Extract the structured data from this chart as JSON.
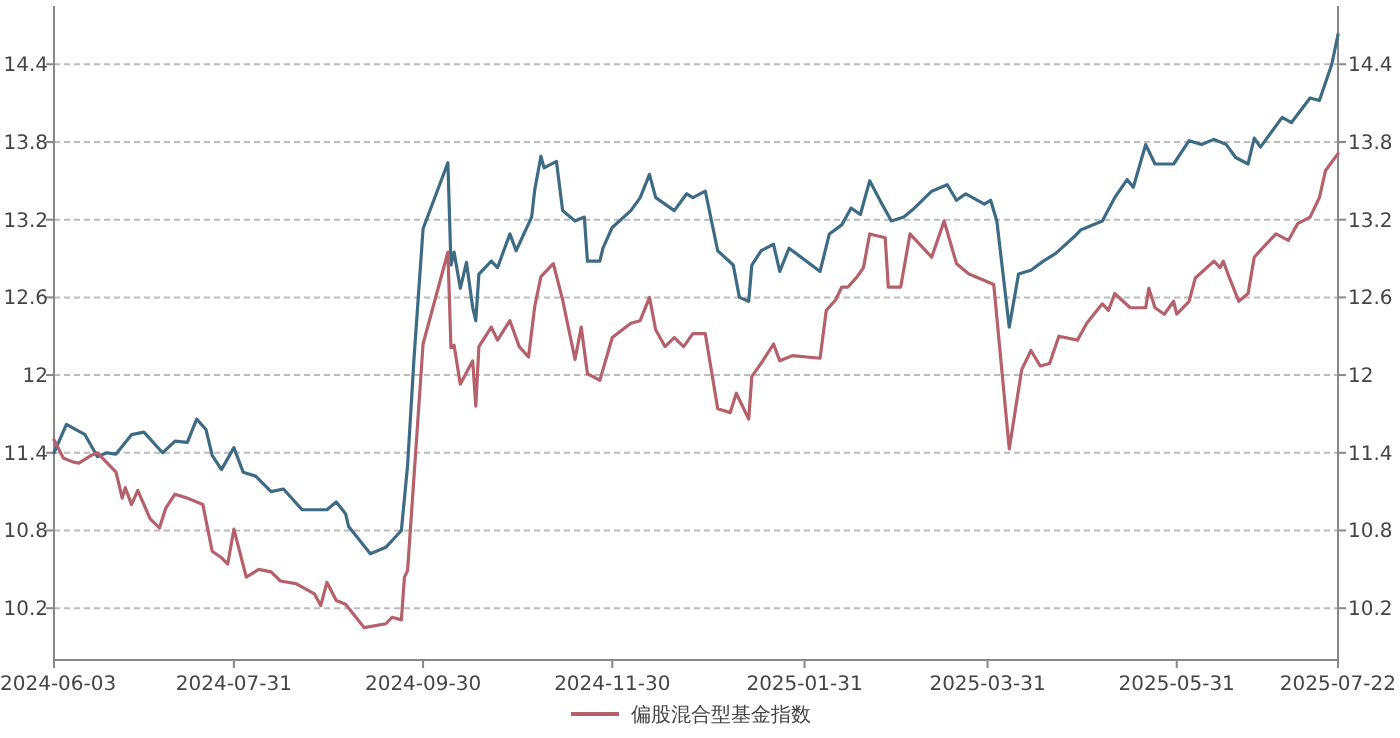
{
  "chart_data": {
    "type": "line",
    "x": [
      "2024-06-03",
      "2024-06-07",
      "2024-06-13",
      "2024-06-17",
      "2024-06-20",
      "2024-06-23",
      "2024-06-28",
      "2024-07-02",
      "2024-07-08",
      "2024-07-12",
      "2024-07-16",
      "2024-07-19",
      "2024-07-22",
      "2024-07-24",
      "2024-07-27",
      "2024-07-31",
      "2024-08-03",
      "2024-08-07",
      "2024-08-12",
      "2024-08-16",
      "2024-08-22",
      "2024-08-30",
      "2024-09-02",
      "2024-09-05",
      "2024-09-06",
      "2024-09-13",
      "2024-09-18",
      "2024-09-23",
      "2024-09-25",
      "2024-09-27",
      "2024-09-30",
      "2024-10-08",
      "2024-10-09",
      "2024-10-10",
      "2024-10-12",
      "2024-10-14",
      "2024-10-16",
      "2024-10-17",
      "2024-10-18",
      "2024-10-22",
      "2024-10-24",
      "2024-10-28",
      "2024-10-30",
      "2024-11-04",
      "2024-11-05",
      "2024-11-07",
      "2024-11-08",
      "2024-11-12",
      "2024-11-14",
      "2024-11-18",
      "2024-11-21",
      "2024-11-22",
      "2024-11-26",
      "2024-11-27",
      "2024-11-30",
      "2024-12-06",
      "2024-12-09",
      "2024-12-12",
      "2024-12-14",
      "2024-12-20",
      "2024-12-24",
      "2024-12-26",
      "2024-12-30",
      "2025-01-03",
      "2025-01-08",
      "2025-01-10",
      "2025-01-13",
      "2025-01-14",
      "2025-01-17",
      "2025-01-21",
      "2025-01-23",
      "2025-01-26",
      "2025-02-05",
      "2025-02-08",
      "2025-02-12",
      "2025-02-15",
      "2025-02-18",
      "2025-02-21",
      "2025-02-25",
      "2025-02-28",
      "2025-03-04",
      "2025-03-07",
      "2025-03-13",
      "2025-03-18",
      "2025-03-21",
      "2025-03-24",
      "2025-03-30",
      "2025-04-01",
      "2025-04-03",
      "2025-04-07",
      "2025-04-10",
      "2025-04-14",
      "2025-04-18",
      "2025-04-22",
      "2025-04-28",
      "2025-04-30",
      "2025-05-07",
      "2025-05-11",
      "2025-05-15",
      "2025-05-17",
      "2025-05-21",
      "2025-05-24",
      "2025-05-30",
      "2025-06-04",
      "2025-06-08",
      "2025-06-12",
      "2025-06-16",
      "2025-06-19",
      "2025-06-23",
      "2025-06-25",
      "2025-06-27",
      "2025-07-04",
      "2025-07-07",
      "2025-07-13",
      "2025-07-16",
      "2025-07-20",
      "2025-07-22"
    ],
    "series": [
      {
        "color": "#3e6b84",
        "values": [
          11.4,
          11.62,
          11.54,
          11.37,
          11.4,
          11.39,
          11.54,
          11.56,
          11.4,
          11.49,
          11.48,
          11.66,
          11.58,
          11.38,
          11.27,
          11.44,
          11.25,
          11.22,
          11.1,
          11.12,
          10.96,
          10.96,
          11.02,
          10.93,
          10.83,
          10.62,
          10.67,
          10.8,
          11.3,
          12.1,
          13.13,
          13.64,
          12.85,
          12.95,
          12.67,
          12.87,
          12.52,
          12.42,
          12.78,
          12.88,
          12.83,
          13.09,
          12.96,
          13.22,
          13.43,
          13.69,
          13.6,
          13.65,
          13.27,
          13.19,
          13.22,
          12.88,
          12.88,
          12.98,
          13.14,
          13.27,
          13.37,
          13.55,
          13.37,
          13.27,
          13.4,
          13.37,
          13.42,
          12.96,
          12.85,
          12.6,
          12.57,
          12.85,
          12.96,
          13.01,
          12.8,
          12.98,
          12.8,
          13.09,
          13.16,
          13.29,
          13.24,
          13.5,
          13.32,
          13.19,
          13.22,
          13.28,
          13.42,
          13.47,
          13.35,
          13.4,
          13.32,
          13.35,
          13.19,
          12.37,
          12.78,
          12.81,
          12.88,
          12.94,
          13.07,
          13.12,
          13.19,
          13.37,
          13.51,
          13.45,
          13.78,
          13.63,
          13.63,
          13.81,
          13.78,
          13.82,
          13.78,
          13.68,
          13.63,
          13.83,
          13.76,
          13.99,
          13.95,
          14.14,
          14.12,
          14.4,
          14.63
        ]
      },
      {
        "name": "偏股混合型基金指数",
        "color": "#b5616b",
        "x": [
          "2024-06-03",
          "2024-06-06",
          "2024-06-09",
          "2024-06-11",
          "2024-06-15",
          "2024-06-17",
          "2024-06-23",
          "2024-06-25",
          "2024-06-26",
          "2024-06-28",
          "2024-06-30",
          "2024-07-04",
          "2024-07-07",
          "2024-07-09",
          "2024-07-12",
          "2024-07-16",
          "2024-07-21",
          "2024-07-24",
          "2024-07-27",
          "2024-07-29",
          "2024-07-31",
          "2024-08-04",
          "2024-08-08",
          "2024-08-12",
          "2024-08-15",
          "2024-08-20",
          "2024-08-26",
          "2024-08-28",
          "2024-08-30",
          "2024-09-02",
          "2024-09-05",
          "2024-09-09",
          "2024-09-11",
          "2024-09-18",
          "2024-09-20",
          "2024-09-23",
          "2024-09-24",
          "2024-09-25",
          "2024-09-30",
          "2024-10-08",
          "2024-10-09",
          "2024-10-10",
          "2024-10-12",
          "2024-10-16",
          "2024-10-17",
          "2024-10-18",
          "2024-10-22",
          "2024-10-24",
          "2024-10-28",
          "2024-10-31",
          "2024-11-03",
          "2024-11-05",
          "2024-11-07",
          "2024-11-11",
          "2024-11-14",
          "2024-11-18",
          "2024-11-20",
          "2024-11-22",
          "2024-11-26",
          "2024-11-30",
          "2024-12-06",
          "2024-12-09",
          "2024-12-12",
          "2024-12-14",
          "2024-12-17",
          "2024-12-20",
          "2024-12-23",
          "2024-12-26",
          "2024-12-30",
          "2025-01-03",
          "2025-01-07",
          "2025-01-09",
          "2025-01-13",
          "2025-01-14",
          "2025-01-17",
          "2025-01-21",
          "2025-01-23",
          "2025-01-27",
          "2025-02-05",
          "2025-02-07",
          "2025-02-10",
          "2025-02-12",
          "2025-02-14",
          "2025-02-17",
          "2025-02-19",
          "2025-02-21",
          "2025-02-26",
          "2025-02-27",
          "2025-03-03",
          "2025-03-06",
          "2025-03-13",
          "2025-03-17",
          "2025-03-21",
          "2025-03-25",
          "2025-03-30",
          "2025-04-02",
          "2025-04-07",
          "2025-04-11",
          "2025-04-14",
          "2025-04-17",
          "2025-04-20",
          "2025-04-23",
          "2025-04-29",
          "2025-05-02",
          "2025-05-07",
          "2025-05-09",
          "2025-05-11",
          "2025-05-16",
          "2025-05-21",
          "2025-05-22",
          "2025-05-24",
          "2025-05-27",
          "2025-05-30",
          "2025-05-31",
          "2025-06-04",
          "2025-06-06",
          "2025-06-12",
          "2025-06-14",
          "2025-06-15",
          "2025-06-17",
          "2025-06-20",
          "2025-06-23",
          "2025-06-25",
          "2025-06-28",
          "2025-07-02",
          "2025-07-06",
          "2025-07-09",
          "2025-07-13",
          "2025-07-16",
          "2025-07-18",
          "2025-07-22"
        ],
        "values": [
          11.5,
          11.36,
          11.33,
          11.32,
          11.38,
          11.4,
          11.25,
          11.05,
          11.13,
          11.0,
          11.11,
          10.89,
          10.82,
          10.97,
          11.08,
          11.05,
          11.0,
          10.64,
          10.59,
          10.54,
          10.81,
          10.44,
          10.5,
          10.48,
          10.41,
          10.39,
          10.31,
          10.22,
          10.4,
          10.26,
          10.23,
          10.11,
          10.05,
          10.08,
          10.13,
          10.11,
          10.44,
          10.49,
          12.24,
          12.95,
          12.21,
          12.23,
          11.93,
          12.11,
          11.76,
          12.22,
          12.37,
          12.27,
          12.42,
          12.22,
          12.14,
          12.53,
          12.76,
          12.86,
          12.58,
          12.12,
          12.37,
          12.01,
          11.96,
          12.29,
          12.4,
          12.42,
          12.6,
          12.35,
          12.22,
          12.29,
          12.22,
          12.32,
          12.32,
          11.74,
          11.71,
          11.86,
          11.66,
          11.99,
          12.09,
          12.24,
          12.11,
          12.15,
          12.13,
          12.5,
          12.58,
          12.68,
          12.68,
          12.76,
          12.83,
          13.09,
          13.06,
          12.68,
          12.68,
          13.09,
          12.91,
          13.19,
          12.86,
          12.78,
          12.73,
          12.7,
          11.43,
          12.04,
          12.19,
          12.07,
          12.09,
          12.3,
          12.27,
          12.4,
          12.55,
          12.5,
          12.63,
          12.52,
          12.52,
          12.67,
          12.52,
          12.47,
          12.57,
          12.47,
          12.57,
          12.75,
          12.88,
          12.83,
          12.88,
          12.75,
          12.57,
          12.63,
          12.91,
          12.99,
          13.09,
          13.04,
          13.17,
          13.22,
          13.37,
          13.58,
          13.71
        ]
      }
    ],
    "xlim": [
      "2024-06-03",
      "2025-07-22"
    ],
    "xticks": [
      "2024-06-03",
      "2024-07-31",
      "2024-09-30",
      "2024-11-30",
      "2025-01-31",
      "2025-03-31",
      "2025-05-31",
      "2025-07-22"
    ],
    "ylim": [
      9.8,
      14.85
    ],
    "yticks": [
      10.2,
      10.8,
      11.4,
      12,
      12.6,
      13.2,
      13.8,
      14.4
    ],
    "y2lim": [
      9.8,
      14.85
    ],
    "y2ticks": [
      10.2,
      10.8,
      11.4,
      12,
      12.6,
      13.2,
      13.8,
      14.4
    ],
    "grid": "y",
    "legend": "bottom",
    "marker": "none",
    "line_style": "solid"
  }
}
